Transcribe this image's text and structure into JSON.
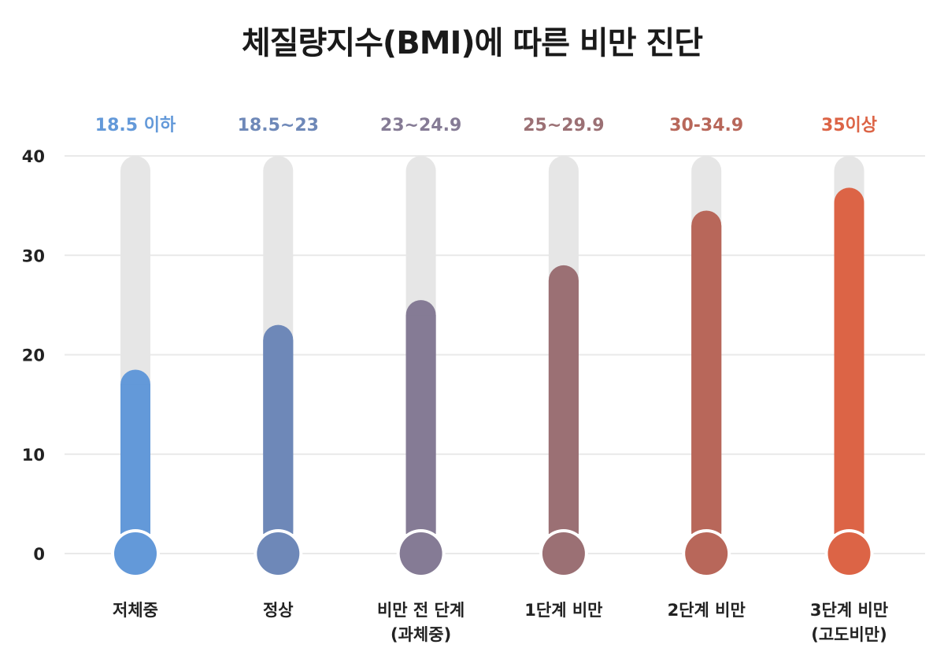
{
  "chart_data": {
    "type": "bar",
    "title": "체질량지수(BMI)에 따른 비만 진단",
    "xlabel": "",
    "ylabel": "",
    "ylim": [
      0,
      40
    ],
    "yticks": [
      0,
      10,
      20,
      30,
      40
    ],
    "grid": true,
    "categories": [
      {
        "lines": [
          "저체중"
        ],
        "range": "18.5 이하",
        "value": 18.5,
        "color": "#6399d9"
      },
      {
        "lines": [
          "정상"
        ],
        "range": "18.5~23",
        "value": 23,
        "color": "#6e88b8"
      },
      {
        "lines": [
          "비만 전 단계",
          "(과체중)"
        ],
        "range": "23~24.9",
        "value": 25.5,
        "color": "#857b95"
      },
      {
        "lines": [
          "1단계 비만"
        ],
        "range": "25~29.9",
        "value": 29,
        "color": "#9b7074"
      },
      {
        "lines": [
          "2단계 비만"
        ],
        "range": "30-34.9",
        "value": 34.5,
        "color": "#b8675a"
      },
      {
        "lines": [
          "3단계 비만",
          "(고도비만)"
        ],
        "range": "35이상",
        "value": 36.8,
        "color": "#dc6446"
      }
    ],
    "track_color": "#e6e6e6",
    "grid_color": "#e9e9e9"
  }
}
